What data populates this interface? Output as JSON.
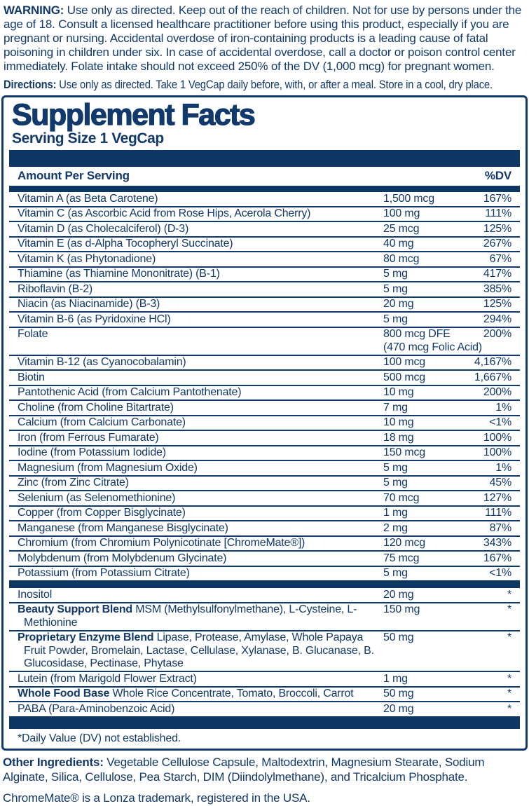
{
  "colors": {
    "navy": "#12396b",
    "bar": "#0d3662"
  },
  "warning": {
    "label": "WARNING:",
    "text": " Use only as directed.  Keep out of the reach of children. Not for use by persons under the age of 18.  Consult a licensed healthcare practitioner before using this product, especially if you are pregnant or nursing.  Accidental overdose of iron-containing products is a leading cause of fatal poisoning in children under six.  In case of accidental overdose, call a doctor or poison control center immediately. Folate intake should not exceed 250% of the DV (1,000 mcg) for pregnant women."
  },
  "directions": {
    "label": "Directions:",
    "text": " Use only as directed. Take 1 VegCap daily before, with, or after a meal. Store in a cool, dry place."
  },
  "panel": {
    "title": "Supplement Facts",
    "serving_size": "Serving Size 1 VegCap",
    "columns": {
      "amount_header": "Amount Per Serving",
      "dv_header": "%DV"
    },
    "sections": [
      {
        "rows": [
          {
            "bold": "",
            "name": "Vitamin A (as Beta Carotene)",
            "amount": "1,500 mcg",
            "amount_note": "",
            "dv": "167%"
          },
          {
            "bold": "",
            "name": "Vitamin C (as Ascorbic Acid from Rose Hips, Acerola Cherry)",
            "amount": "100 mg",
            "amount_note": "",
            "dv": "111%"
          },
          {
            "bold": "",
            "name": "Vitamin D (as Cholecalciferol) (D-3)",
            "amount": "25 mcg",
            "amount_note": "",
            "dv": "125%"
          },
          {
            "bold": "",
            "name": "Vitamin E (as d-Alpha Tocopheryl Succinate)",
            "amount": "40 mg",
            "amount_note": "",
            "dv": "267%"
          },
          {
            "bold": "",
            "name": "Vitamin K (as Phytonadione)",
            "amount": "80 mcg",
            "amount_note": "",
            "dv": "67%"
          },
          {
            "bold": "",
            "name": "Thiamine (as Thiamine Mononitrate) (B-1)",
            "amount": "5 mg",
            "amount_note": "",
            "dv": "417%"
          },
          {
            "bold": "",
            "name": "Riboflavin (B-2)",
            "amount": "5 mg",
            "amount_note": "",
            "dv": "385%"
          },
          {
            "bold": "",
            "name": "Niacin (as Niacinamide) (B-3)",
            "amount": "20 mg",
            "amount_note": "",
            "dv": "125%"
          },
          {
            "bold": "",
            "name": "Vitamin B-6 (as Pyridoxine HCl)",
            "amount": "5 mg",
            "amount_note": "",
            "dv": "294%"
          },
          {
            "bold": "",
            "name": "Folate",
            "amount": "800 mcg DFE",
            "amount_note": "(470 mcg Folic Acid)",
            "dv": "200%"
          },
          {
            "bold": "",
            "name": "Vitamin B-12 (as Cyanocobalamin)",
            "amount": "100 mcg",
            "amount_note": "",
            "dv": "4,167%"
          },
          {
            "bold": "",
            "name": "Biotin",
            "amount": "500 mcg",
            "amount_note": "",
            "dv": "1,667%"
          },
          {
            "bold": "",
            "name": "Pantothenic Acid (from Calcium Pantothenate)",
            "amount": "10 mg",
            "amount_note": "",
            "dv": "200%"
          },
          {
            "bold": "",
            "name": "Choline (from Choline Bitartrate)",
            "amount": "7 mg",
            "amount_note": "",
            "dv": "1%"
          },
          {
            "bold": "",
            "name": "Calcium (from Calcium Carbonate)",
            "amount": "10 mg",
            "amount_note": "",
            "dv": "<1%"
          },
          {
            "bold": "",
            "name": "Iron (from Ferrous Fumarate)",
            "amount": "18 mg",
            "amount_note": "",
            "dv": "100%"
          },
          {
            "bold": "",
            "name": "Iodine (from Potassium Iodide)",
            "amount": "150 mcg",
            "amount_note": "",
            "dv": "100%"
          },
          {
            "bold": "",
            "name": "Magnesium (from Magnesium Oxide)",
            "amount": "5 mg",
            "amount_note": "",
            "dv": "1%"
          },
          {
            "bold": "",
            "name": "Zinc (from Zinc Citrate)",
            "amount": "5 mg",
            "amount_note": "",
            "dv": "45%"
          },
          {
            "bold": "",
            "name": "Selenium (as Selenomethionine)",
            "amount": "70 mcg",
            "amount_note": "",
            "dv": "127%"
          },
          {
            "bold": "",
            "name": "Copper (from Copper Bisglycinate)",
            "amount": "1 mg",
            "amount_note": "",
            "dv": "111%"
          },
          {
            "bold": "",
            "name": "Manganese (from Manganese Bisglycinate)",
            "amount": "2 mg",
            "amount_note": "",
            "dv": "87%"
          },
          {
            "bold": "",
            "name": "Chromium (from Chromium Polynicotinate [ChromeMate®])",
            "amount": "120 mcg",
            "amount_note": "",
            "dv": "343%"
          },
          {
            "bold": "",
            "name": "Molybdenum (from Molybdenum Glycinate)",
            "amount": "75 mcg",
            "amount_note": "",
            "dv": "167%"
          },
          {
            "bold": "",
            "name": "Potassium (from Potassium Citrate)",
            "amount": "5 mg",
            "amount_note": "",
            "dv": "<1%"
          }
        ]
      },
      {
        "rows": [
          {
            "bold": "",
            "name": "Inositol",
            "amount": "20 mg",
            "amount_note": "",
            "dv": "*"
          },
          {
            "bold": "Beauty Support Blend",
            "name": " MSM (Methylsulfonylmethane), L-Cysteine, L-Methionine",
            "amount": "150 mg",
            "amount_note": "",
            "dv": "*"
          },
          {
            "bold": "Proprietary Enzyme Blend",
            "name": " Lipase, Protease, Amylase, Whole Papaya Fruit Powder, Bromelain, Lactase, Cellulase, Xylanase, B. Glucanase, B. Glucosidase, Pectinase, Phytase",
            "amount": "50 mg",
            "amount_note": "",
            "dv": "*"
          },
          {
            "bold": "",
            "name": "Lutein (from Marigold Flower Extract)",
            "amount": "1 mg",
            "amount_note": "",
            "dv": "*"
          },
          {
            "bold": "Whole Food Base",
            "name": " Whole Rice Concentrate, Tomato, Broccoli, Carrot",
            "amount": "50 mg",
            "amount_note": "",
            "dv": "*"
          },
          {
            "bold": "",
            "name": "PABA (Para-Aminobenzoic Acid)",
            "amount": "20 mg",
            "amount_note": "",
            "dv": "*"
          }
        ]
      }
    ],
    "footnote": "*Daily Value (DV) not established."
  },
  "other_ingredients": {
    "label": "Other Ingredients:",
    "text": " Vegetable Cellulose Capsule, Maltodextrin, Magnesium Stearate, Sodium Alginate, Silica, Cellulose, Pea Starch, DIM (Diindolylmethane), and Tricalcium Phosphate."
  },
  "trademark": "ChromeMate® is a Lonza trademark, registered in the USA."
}
